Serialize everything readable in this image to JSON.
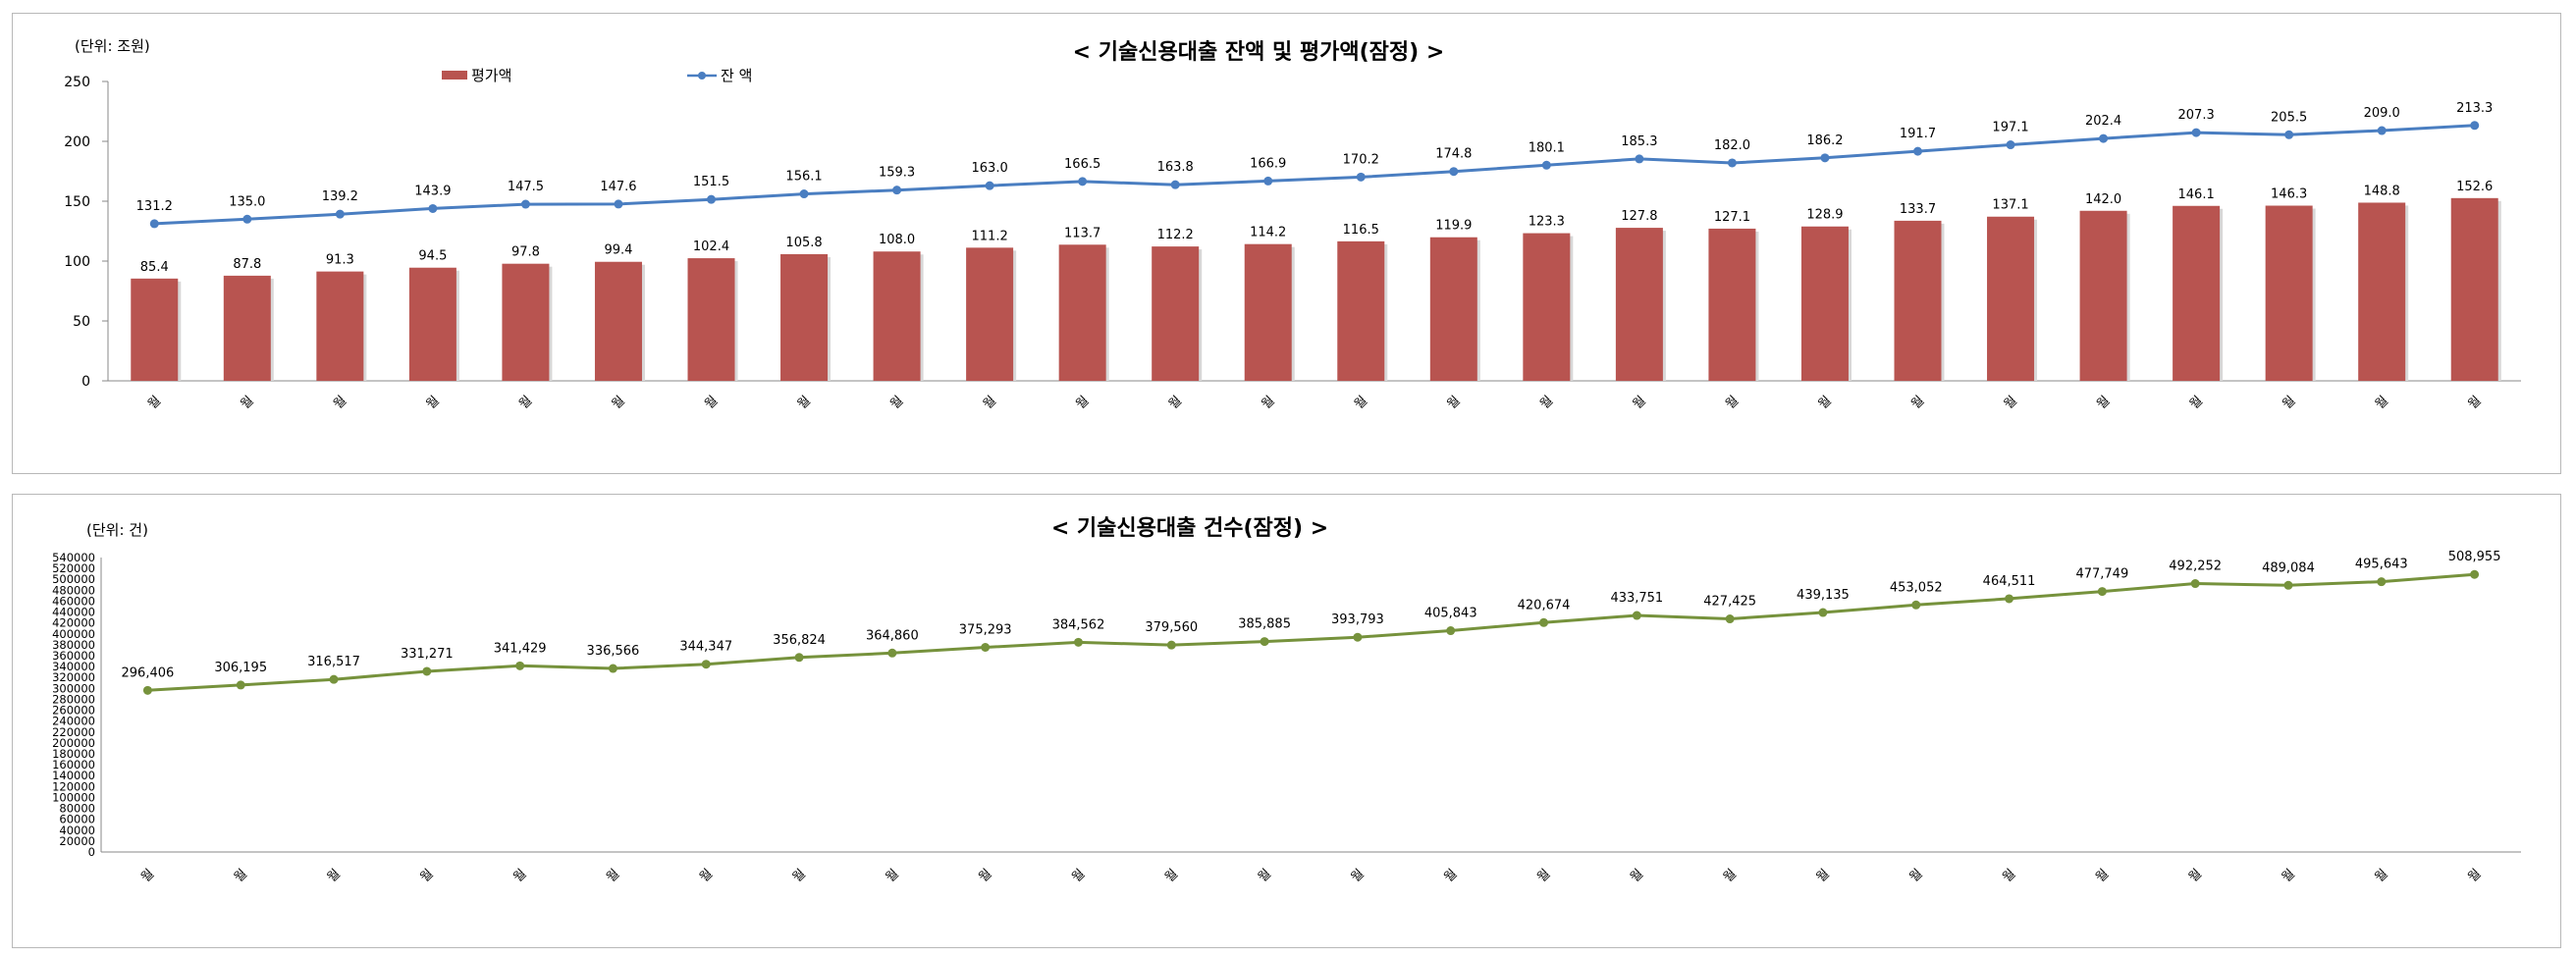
{
  "chart_data": [
    {
      "type": "bar+line",
      "title": "< 기술신용대출 잔액 및 평가액(잠정) >",
      "unit_label": "(단위: 조원)",
      "categories": [
        "월",
        "월",
        "월",
        "월",
        "월",
        "월",
        "월",
        "월",
        "월",
        "월",
        "월",
        "월",
        "월",
        "월",
        "월",
        "월",
        "월",
        "월",
        "월",
        "월",
        "월",
        "월",
        "월",
        "월",
        "월",
        "월"
      ],
      "ylim": [
        0,
        250
      ],
      "yticks": [
        "0",
        "50",
        "100",
        "150",
        "200",
        "250"
      ],
      "series": [
        {
          "name": "평가액",
          "kind": "bar",
          "color": "#b85450",
          "values": [
            85.4,
            87.8,
            91.3,
            94.5,
            97.8,
            99.4,
            102.4,
            105.8,
            108.0,
            111.2,
            113.7,
            112.2,
            114.2,
            116.5,
            119.9,
            123.3,
            127.8,
            127.1,
            128.9,
            133.7,
            137.1,
            142.0,
            146.1,
            146.3,
            148.8,
            152.6
          ],
          "labels": [
            "85.4",
            "87.8",
            "91.3",
            "94.5",
            "97.8",
            "99.4",
            "102.4",
            "105.8",
            "108.0",
            "111.2",
            "113.7",
            "112.2",
            "114.2",
            "116.5",
            "119.9",
            "123.3",
            "127.8",
            "127.1",
            "128.9",
            "133.7",
            "137.1",
            "142.0",
            "146.1",
            "146.3",
            "148.8",
            "152.6"
          ]
        },
        {
          "name": "잔 액",
          "kind": "line",
          "color": "#4a7ec1",
          "values": [
            131.2,
            135.0,
            139.2,
            143.9,
            147.5,
            147.6,
            151.5,
            156.1,
            159.3,
            163.0,
            166.5,
            163.8,
            166.9,
            170.2,
            174.8,
            180.1,
            185.3,
            182.0,
            186.2,
            191.7,
            197.1,
            202.4,
            207.3,
            205.5,
            209.0,
            213.3
          ],
          "labels": [
            "131.2",
            "135.0",
            "139.2",
            "143.9",
            "147.5",
            "147.6",
            "151.5",
            "156.1",
            "159.3",
            "163.0",
            "166.5",
            "163.8",
            "166.9",
            "170.2",
            "174.8",
            "180.1",
            "185.3",
            "182.0",
            "186.2",
            "191.7",
            "197.1",
            "202.4",
            "207.3",
            "205.5",
            "209.0",
            "213.3"
          ]
        }
      ],
      "legend_position": "top-left"
    },
    {
      "type": "line",
      "title": "< 기술신용대출 건수(잠정) >",
      "unit_label": "(단위: 건)",
      "categories": [
        "월",
        "월",
        "월",
        "월",
        "월",
        "월",
        "월",
        "월",
        "월",
        "월",
        "월",
        "월",
        "월",
        "월",
        "월",
        "월",
        "월",
        "월",
        "월",
        "월",
        "월",
        "월",
        "월",
        "월",
        "월",
        "월"
      ],
      "ylim": [
        0,
        540000
      ],
      "yticks": [
        "0",
        "20000",
        "40000",
        "60000",
        "80000",
        "100000",
        "120000",
        "140000",
        "160000",
        "180000",
        "200000",
        "220000",
        "240000",
        "260000",
        "280000",
        "300000",
        "320000",
        "340000",
        "360000",
        "380000",
        "400000",
        "420000",
        "440000",
        "460000",
        "480000",
        "500000",
        "520000",
        "540000"
      ],
      "series": [
        {
          "kind": "line",
          "color": "#76923c",
          "values": [
            296406,
            306195,
            316517,
            331271,
            341429,
            336566,
            344347,
            356824,
            364860,
            375293,
            384562,
            379560,
            385885,
            393793,
            405843,
            420674,
            433751,
            427425,
            439135,
            453052,
            464511,
            477749,
            492252,
            489084,
            495643,
            508955
          ],
          "labels": [
            "296,406",
            "306,195",
            "316,517",
            "331,271",
            "341,429",
            "336,566",
            "344,347",
            "356,824",
            "364,860",
            "375,293",
            "384,562",
            "379,560",
            "385,885",
            "393,793",
            "405,843",
            "420,674",
            "433,751",
            "427,425",
            "439,135",
            "453,052",
            "464,511",
            "477,749",
            "492,252",
            "489,084",
            "495,643",
            "508,955"
          ]
        }
      ]
    }
  ]
}
